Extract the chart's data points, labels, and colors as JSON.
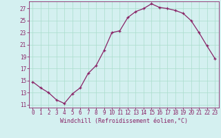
{
  "x": [
    0,
    1,
    2,
    3,
    4,
    5,
    6,
    7,
    8,
    9,
    10,
    11,
    12,
    13,
    14,
    15,
    16,
    17,
    18,
    19,
    20,
    21,
    22,
    23
  ],
  "y": [
    14.8,
    13.8,
    13.0,
    11.8,
    11.2,
    12.8,
    13.8,
    16.2,
    17.5,
    20.0,
    23.0,
    23.3,
    25.5,
    26.5,
    27.0,
    27.8,
    27.2,
    27.0,
    26.7,
    26.2,
    25.0,
    23.0,
    20.8,
    18.7
  ],
  "line_color": "#882266",
  "marker": "+",
  "markersize": 3.5,
  "linewidth": 0.9,
  "bg_color": "#d4f0f0",
  "grid_color": "#aaddcc",
  "xlabel": "Windchill (Refroidissement éolien,°C)",
  "xlabel_color": "#882266",
  "tick_color": "#882266",
  "spine_color": "#882266",
  "ylim": [
    10.5,
    28.2
  ],
  "yticks": [
    11,
    13,
    15,
    17,
    19,
    21,
    23,
    25,
    27
  ],
  "xlim": [
    -0.5,
    23.5
  ],
  "xticks": [
    0,
    1,
    2,
    3,
    4,
    5,
    6,
    7,
    8,
    9,
    10,
    11,
    12,
    13,
    14,
    15,
    16,
    17,
    18,
    19,
    20,
    21,
    22,
    23
  ],
  "xlabel_fontsize": 6.0,
  "tick_fontsize": 5.5
}
